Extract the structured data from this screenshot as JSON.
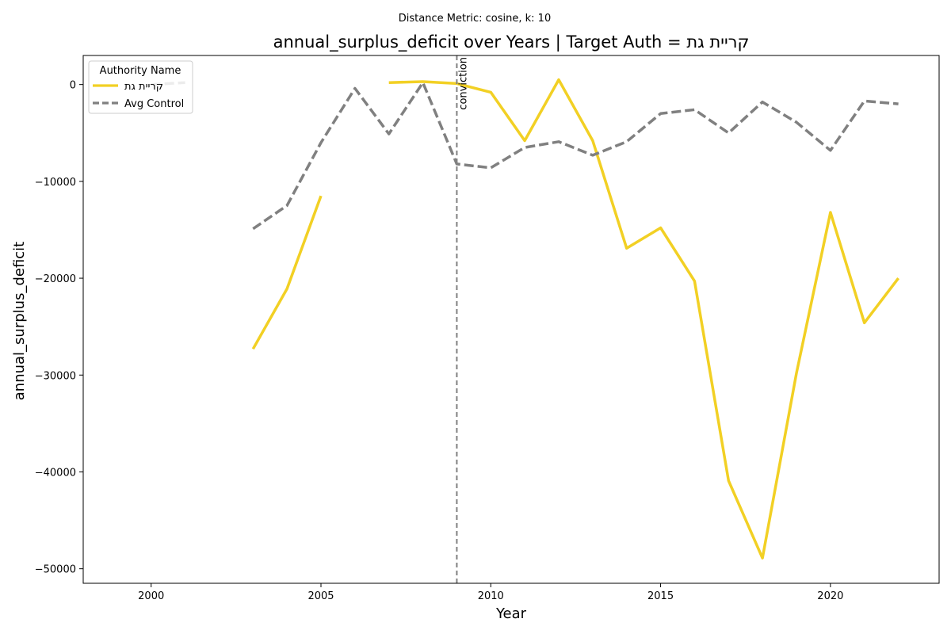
{
  "chart_data": {
    "type": "line",
    "subtitle": "Distance Metric: cosine, k: 10",
    "title": "annual_surplus_deficit over Years | Target Auth = קריית גת",
    "xlabel": "Year",
    "ylabel": "annual_surplus_deficit",
    "xlim": [
      1998,
      2023.2
    ],
    "ylim": [
      -51500,
      3000
    ],
    "x_ticks": [
      2000,
      2005,
      2010,
      2015,
      2020
    ],
    "y_ticks": [
      0,
      -10000,
      -20000,
      -30000,
      -40000,
      -50000
    ],
    "x_tick_labels": [
      "2000",
      "2005",
      "2010",
      "2015",
      "2020"
    ],
    "y_tick_labels": [
      "0",
      "−10000",
      "−20000",
      "−30000",
      "−40000",
      "−50000"
    ],
    "legend": {
      "title": "Authority Name",
      "placement": "upper-left",
      "entries": [
        "קריית גת",
        "Avg Control"
      ]
    },
    "series": [
      {
        "name": "קריית גת",
        "color": "#f2d024",
        "style": "solid",
        "segments": [
          [
            [
              2003,
              -27300
            ],
            [
              2004,
              -21100
            ],
            [
              2005,
              -11500
            ]
          ],
          [
            [
              2007,
              200
            ],
            [
              2008,
              300
            ],
            [
              2009,
              100
            ],
            [
              2010,
              -800
            ],
            [
              2011,
              -5800
            ],
            [
              2012,
              500
            ],
            [
              2013,
              -5800
            ],
            [
              2014,
              -16900
            ],
            [
              2015,
              -14800
            ],
            [
              2016,
              -20300
            ],
            [
              2017,
              -40900
            ],
            [
              2018,
              -48900
            ],
            [
              2019,
              -29800
            ],
            [
              2020,
              -13200
            ],
            [
              2021,
              -24600
            ],
            [
              2022,
              -20000
            ]
          ]
        ]
      },
      {
        "name": "Avg Control",
        "color": "#808080",
        "style": "dashed",
        "segments": [
          [
            [
              2000,
              0
            ],
            [
              2001,
              200
            ]
          ],
          [
            [
              2003,
              -14900
            ],
            [
              2004,
              -12500
            ],
            [
              2005,
              -6000
            ],
            [
              2006,
              -400
            ],
            [
              2007,
              -5100
            ],
            [
              2008,
              200
            ],
            [
              2009,
              -8200
            ],
            [
              2010,
              -8600
            ],
            [
              2011,
              -6500
            ],
            [
              2012,
              -5900
            ],
            [
              2013,
              -7300
            ],
            [
              2014,
              -5900
            ],
            [
              2015,
              -3000
            ],
            [
              2016,
              -2600
            ],
            [
              2017,
              -5000
            ],
            [
              2018,
              -1800
            ],
            [
              2019,
              -3900
            ],
            [
              2020,
              -6800
            ],
            [
              2021,
              -1700
            ],
            [
              2022,
              -2000
            ]
          ]
        ]
      }
    ],
    "annotations": [
      {
        "x": 2009,
        "text": "conviction",
        "line_color": "#808080",
        "line_style": "dashed"
      }
    ],
    "grid": false
  }
}
